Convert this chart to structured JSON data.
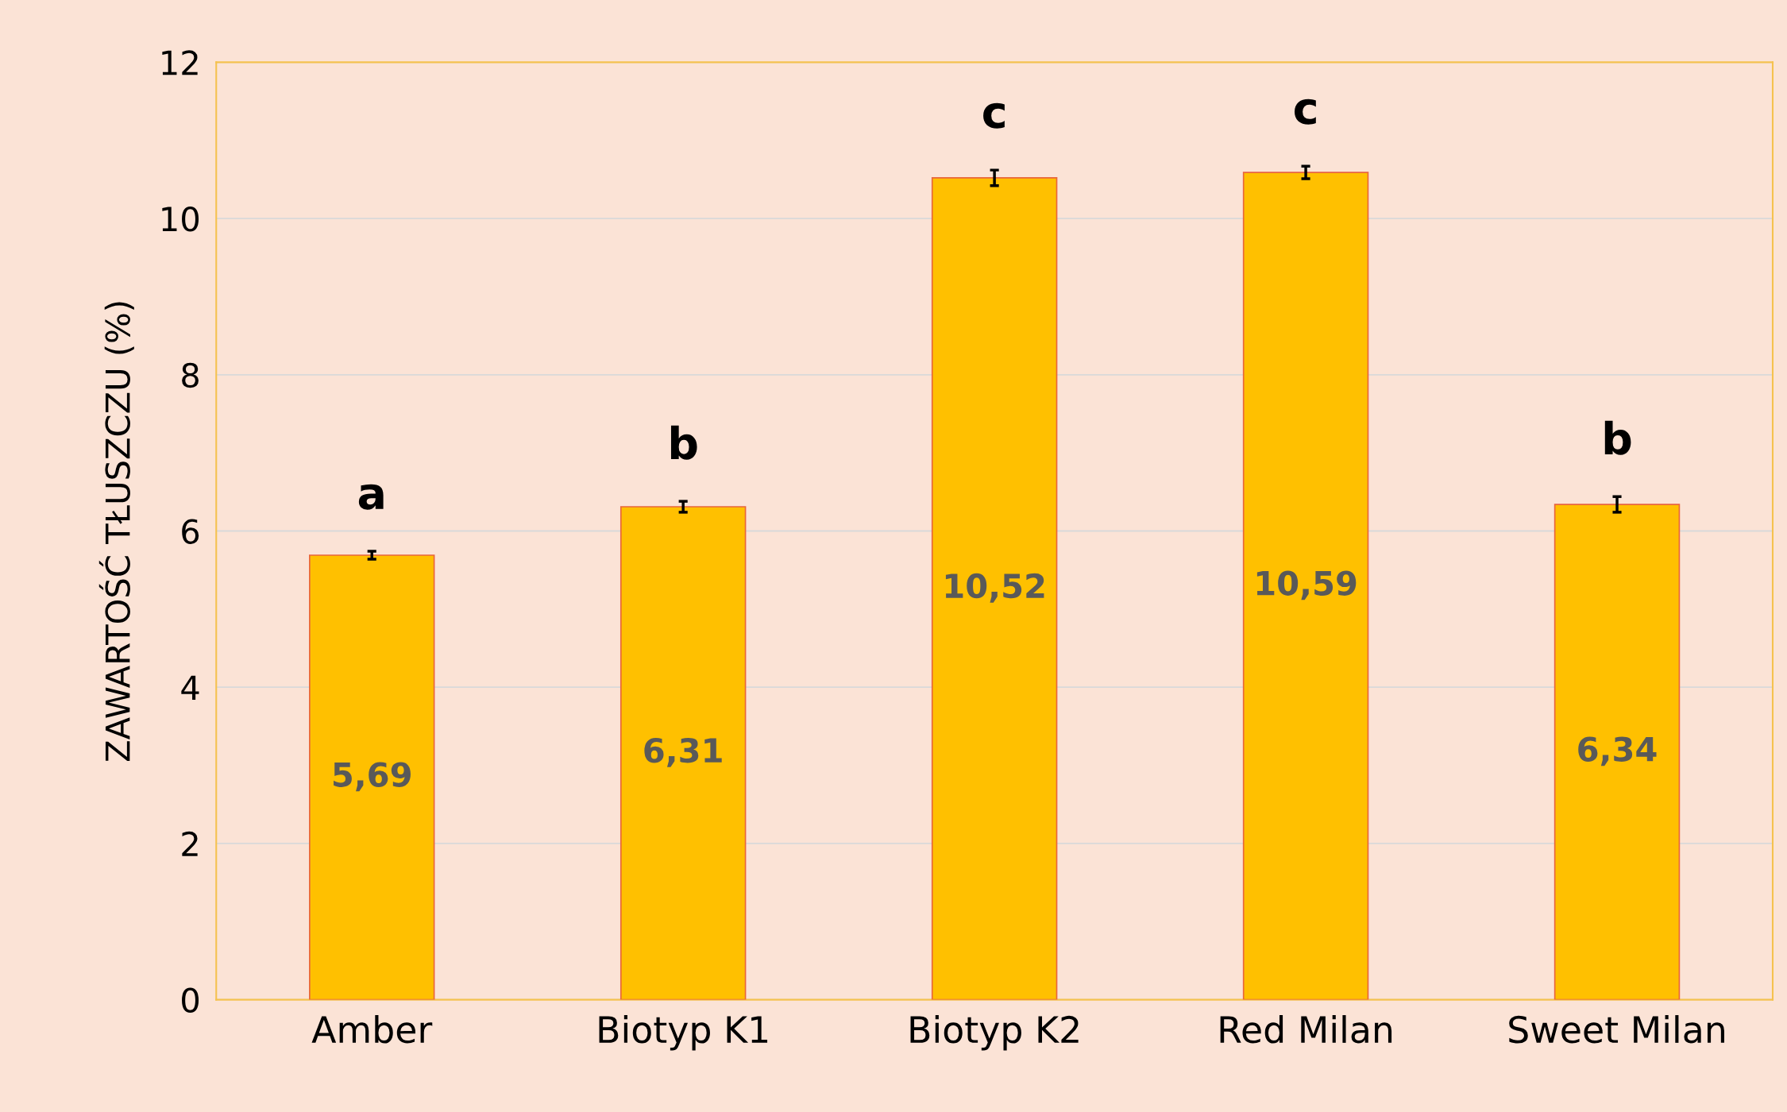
{
  "chart_data": {
    "type": "bar",
    "ylabel": "ZAWARTOŚĆ TŁUSZCZU (%)",
    "categories": [
      "Amber",
      "Biotyp K1",
      "Biotyp K2",
      "Red Milan",
      "Sweet Milan"
    ],
    "values": [
      5.69,
      6.31,
      10.52,
      10.59,
      6.34
    ],
    "value_labels": [
      "5,69",
      "6,31",
      "10,52",
      "10,59",
      "6,34"
    ],
    "errors": [
      0.05,
      0.07,
      0.1,
      0.08,
      0.1
    ],
    "color": "#ffc000",
    "ylim": [
      0,
      12
    ],
    "yticks": [
      0,
      2,
      4,
      6,
      8,
      10,
      12
    ],
    "grid": "y",
    "annotations": [
      "a",
      "b",
      "c",
      "c",
      "b"
    ]
  }
}
